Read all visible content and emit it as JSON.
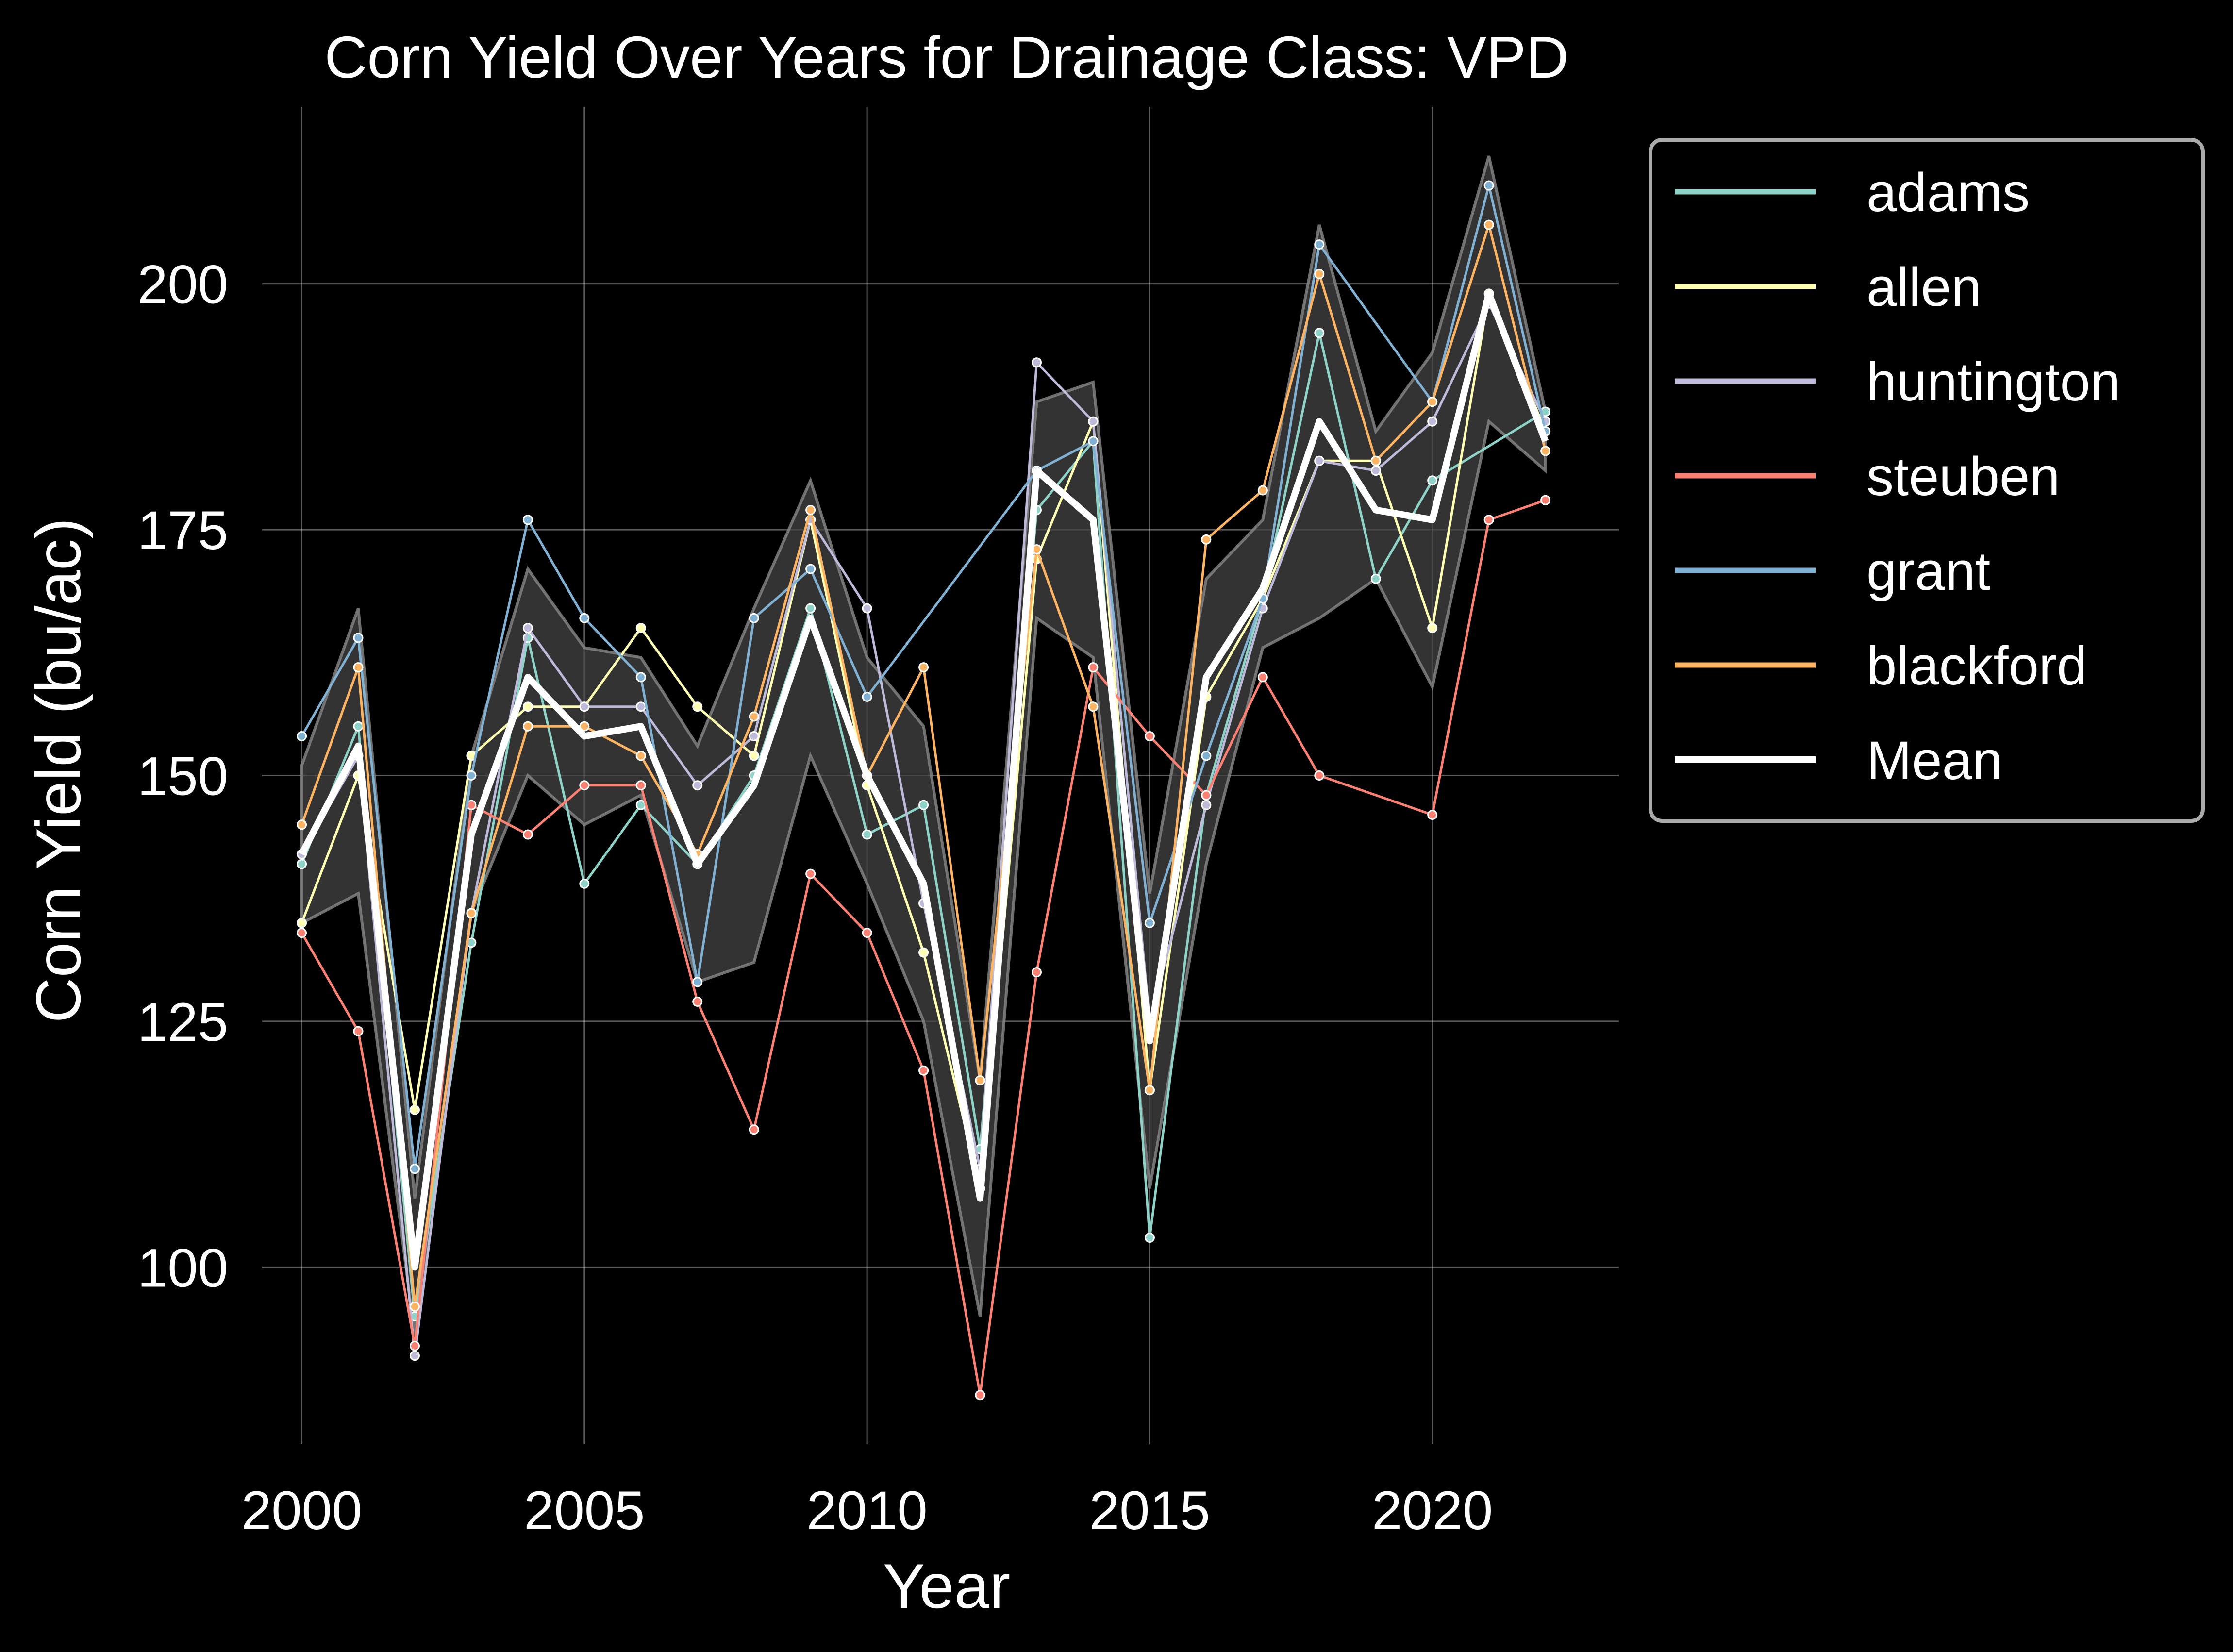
{
  "chart_data": {
    "type": "line",
    "title": "Corn Yield Over Years for Drainage Class: VPD",
    "xlabel": "Year",
    "ylabel": "Corn Yield (bu/ac)",
    "xlim": [
      1999.3,
      2023.3
    ],
    "ylim": [
      82,
      218
    ],
    "x_ticks": [
      2000,
      2005,
      2010,
      2015,
      2020
    ],
    "y_ticks": [
      100,
      125,
      150,
      175,
      200
    ],
    "grid": true,
    "legend_position": "outside right",
    "background": "#000000",
    "band_color": "#444444",
    "x": [
      2000,
      2001,
      2002,
      2003,
      2004,
      2005,
      2006,
      2007,
      2008,
      2009,
      2010,
      2011,
      2012,
      2013,
      2014,
      2015,
      2016,
      2017,
      2018,
      2019,
      2020,
      2021,
      2022
    ],
    "series": [
      {
        "name": "adams",
        "color": "#8dd3c7",
        "values": [
          141,
          155,
          95,
          133,
          164,
          139,
          147,
          141,
          150,
          167,
          144,
          147,
          112,
          177,
          184,
          103,
          148,
          168,
          195,
          170,
          180,
          null,
          187
        ]
      },
      {
        "name": "allen",
        "color": "#ffffb3",
        "values": [
          135,
          150,
          116,
          152,
          157,
          157,
          165,
          157,
          152,
          176,
          149,
          132,
          108,
          172,
          186,
          118,
          158,
          168,
          182,
          182,
          165,
          199,
          185
        ]
      },
      {
        "name": "huntington",
        "color": "#bebada",
        "values": [
          142,
          152,
          91,
          136,
          165,
          157,
          157,
          149,
          154,
          176,
          167,
          137,
          110,
          192,
          186,
          125,
          147,
          167,
          182,
          181,
          186,
          198,
          186
        ]
      },
      {
        "name": "steuben",
        "color": "#fb8072",
        "values": [
          134,
          124,
          92,
          147,
          144,
          149,
          149,
          127,
          114,
          140,
          134,
          120,
          87,
          130,
          161,
          154,
          148,
          160,
          150,
          null,
          146,
          176,
          178
        ]
      },
      {
        "name": "grant",
        "color": "#80b1d3",
        "values": [
          154,
          164,
          110,
          150,
          176,
          166,
          160,
          129,
          166,
          171,
          158,
          null,
          null,
          181,
          184,
          135,
          152,
          168,
          204,
          null,
          188,
          210,
          185
        ]
      },
      {
        "name": "blackford",
        "color": "#fdb462",
        "values": [
          145,
          161,
          96,
          136,
          155,
          155,
          152,
          142,
          156,
          177,
          150,
          161,
          119,
          173,
          157,
          118,
          174,
          179,
          201,
          182,
          188,
          206,
          183
        ]
      },
      {
        "name": "Mean",
        "color": "#ffffff",
        "values": [
          142,
          153,
          100,
          144,
          160,
          154,
          155,
          141,
          149,
          166,
          150,
          139,
          107,
          181,
          176,
          123,
          160,
          169,
          186,
          177,
          176,
          199,
          184
        ]
      }
    ],
    "band": {
      "lower": [
        135,
        138,
        93,
        136,
        150,
        145,
        148,
        129,
        131,
        152,
        139,
        125,
        95,
        166,
        162,
        108,
        141,
        163,
        166,
        170,
        159,
        186,
        181
      ],
      "upper": [
        151,
        167,
        107,
        152,
        171,
        163,
        162,
        153,
        167,
        180,
        162,
        155,
        119,
        188,
        190,
        138,
        170,
        176,
        206,
        185,
        193,
        213,
        187
      ]
    }
  }
}
